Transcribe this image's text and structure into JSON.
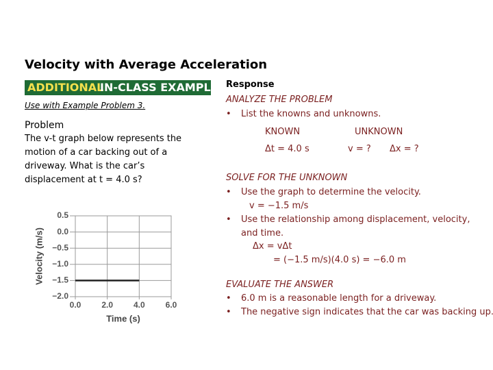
{
  "title": "Velocity with Average Acceleration",
  "banner": {
    "first": "ADDITIONAL",
    "second": "IN-CLASS EXAMPLE"
  },
  "note": "Use with Example Problem 3.",
  "problem": {
    "heading": "Problem",
    "text": "The v-t graph below represents the motion of a car backing out of a driveway. What is the car’s displacement at t = 4.0 s?"
  },
  "response": {
    "heading": "Response",
    "analyze": {
      "heading": "ANALYZE THE PROBLEM",
      "bullet": "List the knowns and unknowns."
    },
    "known": {
      "heading": "KNOWN",
      "item": "Δt = 4.0 s"
    },
    "unknown": {
      "heading": "UNKNOWN",
      "items": [
        "v = ?",
        "Δx = ?"
      ]
    },
    "solve": {
      "heading": "SOLVE FOR THE UNKNOWN",
      "bullets": [
        "Use the graph to determine the velocity.",
        "Use the relationship among displacement, velocity, and time."
      ],
      "velocity": "v = −1.5 m/s",
      "equation": "Δx = vΔt",
      "result": "= (−1.5 m/s)(4.0 s) = −6.0 m"
    },
    "evaluate": {
      "heading": "EVALUATE THE ANSWER",
      "bullets": [
        "6.0 m is a reasonable length for a driveway.",
        "The negative sign indicates that the car was backing up."
      ]
    }
  },
  "chart_data": {
    "type": "line",
    "x_label": "Time (s)",
    "y_label": "Velocity (m/s)",
    "x": [
      0,
      4
    ],
    "values": [
      -1.5,
      -1.5
    ],
    "color": "#222222",
    "xlim": [
      0,
      6
    ],
    "ylim": [
      -2,
      0.5
    ],
    "xticks": [
      {
        "value": 0,
        "label": "0.0"
      },
      {
        "value": 2,
        "label": "2.0"
      },
      {
        "value": 4,
        "label": "4.0"
      },
      {
        "value": 6,
        "label": "6.0"
      }
    ],
    "yticks": [
      0.5,
      {
        "value": 0,
        "label": "0.0"
      },
      {
        "value": -0.5,
        "label": "−0.5"
      },
      {
        "value": -1,
        "label": "−1.0"
      },
      {
        "value": -1.5,
        "label": "−1.5"
      },
      {
        "value": -2,
        "label": "−2.0"
      }
    ],
    "grid": true
  }
}
